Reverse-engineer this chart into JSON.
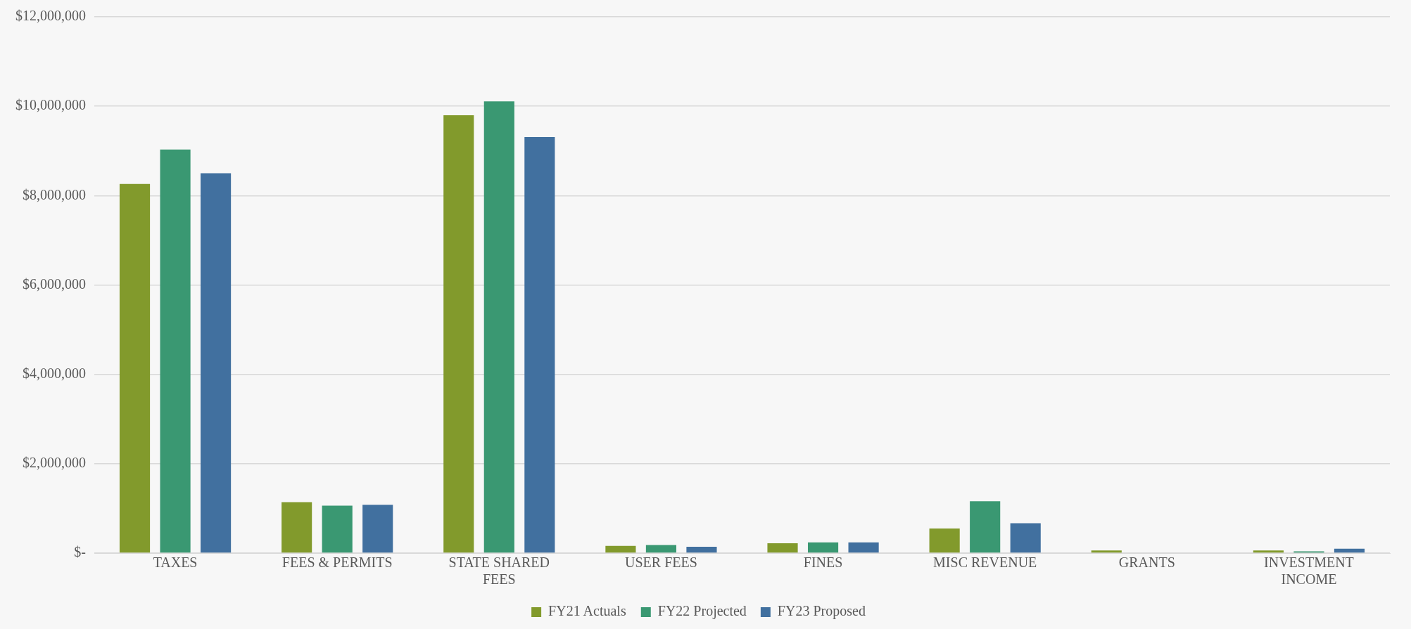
{
  "chart_data": {
    "type": "bar",
    "categories": [
      "TAXES",
      "FEES & PERMITS",
      "STATE SHARED FEES",
      "USER FEES",
      "FINES",
      "MISC REVENUE",
      "GRANTS",
      "INVESTMENT INCOME"
    ],
    "series": [
      {
        "name": "FY21 Actuals",
        "color": "#829a2c",
        "values": [
          8260000,
          1140000,
          9800000,
          160000,
          220000,
          550000,
          60000,
          60000
        ]
      },
      {
        "name": "FY22 Projected",
        "color": "#3a9872",
        "values": [
          9030000,
          1060000,
          10110000,
          180000,
          240000,
          1160000,
          0,
          40000
        ]
      },
      {
        "name": "FY23 Proposed",
        "color": "#41709f",
        "values": [
          8500000,
          1080000,
          9310000,
          140000,
          240000,
          670000,
          0,
          100000
        ]
      }
    ],
    "ylim": [
      0,
      12000000
    ],
    "yticks": [
      {
        "value": 0,
        "label": "$-"
      },
      {
        "value": 2000000,
        "label": "$2,000,000"
      },
      {
        "value": 4000000,
        "label": "$4,000,000"
      },
      {
        "value": 6000000,
        "label": "$6,000,000"
      },
      {
        "value": 8000000,
        "label": "$8,000,000"
      },
      {
        "value": 10000000,
        "label": "$10,000,000"
      },
      {
        "value": 12000000,
        "label": "$12,000,000"
      }
    ],
    "grid": "y",
    "legend": "bottom"
  }
}
